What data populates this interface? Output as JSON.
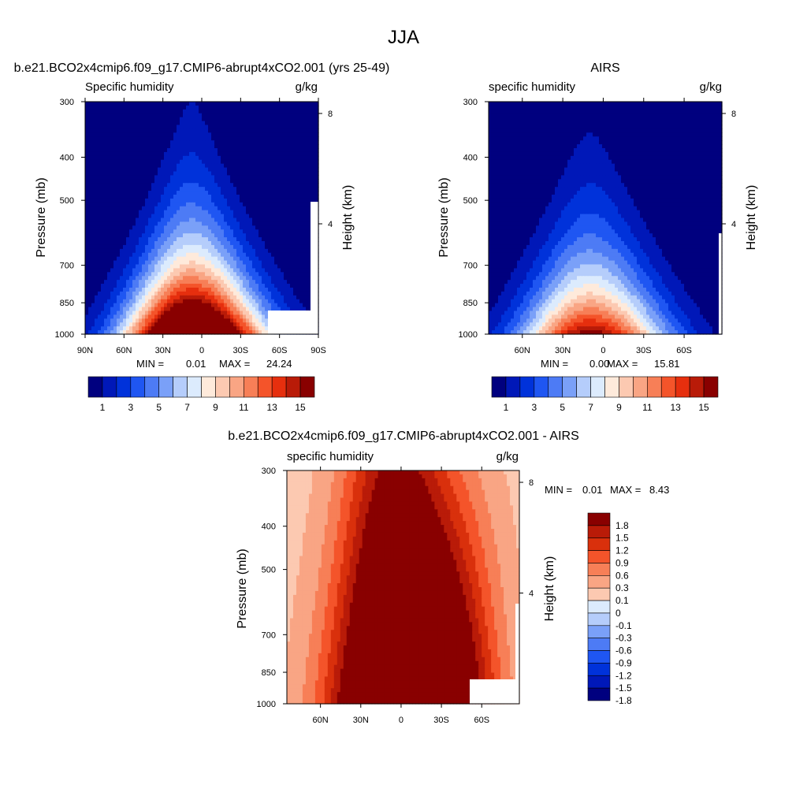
{
  "page_title": "JJA",
  "colors": {
    "abs_levels": [
      "#00007f",
      "#0018b8",
      "#0032da",
      "#1f56f2",
      "#4d7bf5",
      "#7aa0f8",
      "#b5cdfb",
      "#dcebfd",
      "#feeadb",
      "#fcc9b1",
      "#f9a584",
      "#f77f57",
      "#f4542a",
      "#e62f0e",
      "#b91b08",
      "#890000"
    ],
    "diff_levels": [
      "#890000",
      "#b91b08",
      "#d9300c",
      "#f4542a",
      "#f77f57",
      "#f9a584",
      "#fcc9b1",
      "#feeadb",
      "#ffffff",
      "#dcebfd",
      "#b5cdfb",
      "#7aa0f8",
      "#4d7bf5",
      "#1f56f2",
      "#0032da",
      "#0018b8",
      "#00007f"
    ]
  },
  "chart_data": [
    {
      "id": "model",
      "type": "heatmap",
      "title": "b.e21.BCO2x4cmip6.f09_g17.CMIP6-abrupt4xCO2.001 (yrs 25-49)",
      "left_label": "Specific humidity",
      "units": "g/kg",
      "ylabel": "Pressure (mb)",
      "y2label": "Height (km)",
      "y_ticks": [
        "300",
        "400",
        "500",
        "700",
        "850",
        "1000"
      ],
      "y2_ticks": [
        "8",
        "4"
      ],
      "x_ticks": [
        "90N",
        "60N",
        "30N",
        "0",
        "30S",
        "60S",
        "90S"
      ],
      "x_range": [
        90,
        -90
      ],
      "min_label": "MIN =",
      "min_value": "0.01",
      "max_label": "MAX =",
      "max_value": "24.24",
      "colorbar_labels": [
        "1",
        "3",
        "5",
        "7",
        "9",
        "11",
        "13",
        "15"
      ],
      "ridge": {
        "peak_lat": 8,
        "surface_max": 24.24,
        "top_min": 0.01
      }
    },
    {
      "id": "obs",
      "type": "heatmap",
      "title": "AIRS",
      "left_label": "specific humidity",
      "units": "g/kg",
      "ylabel": "Pressure (mb)",
      "y2label": "Height (km)",
      "y_ticks": [
        "300",
        "400",
        "500",
        "700",
        "850",
        "1000"
      ],
      "y2_ticks": [
        "8",
        "4"
      ],
      "x_ticks": [
        "60N",
        "30N",
        "0",
        "30S",
        "60S"
      ],
      "x_range": [
        85,
        -88
      ],
      "min_label": "MIN =",
      "min_value": "0.00",
      "max_label": "MAX =",
      "max_value": "15.81",
      "colorbar_labels": [
        "1",
        "3",
        "5",
        "7",
        "9",
        "11",
        "13",
        "15"
      ],
      "ridge": {
        "peak_lat": 10,
        "surface_max": 15.81,
        "top_min": 0.0
      }
    },
    {
      "id": "diff",
      "type": "heatmap",
      "title": "b.e21.BCO2x4cmip6.f09_g17.CMIP6-abrupt4xCO2.001 - AIRS",
      "left_label": "specific humidity",
      "units": "g/kg",
      "ylabel": "Pressure (mb)",
      "y2label": "Height (km)",
      "y_ticks": [
        "300",
        "400",
        "500",
        "700",
        "850",
        "1000"
      ],
      "y2_ticks": [
        "8",
        "4"
      ],
      "x_ticks": [
        "60N",
        "30N",
        "0",
        "30S",
        "60S"
      ],
      "x_range": [
        85,
        -88
      ],
      "min_label": "MIN =",
      "min_value": "0.01",
      "max_label": "MAX =",
      "max_value": "8.43",
      "colorbar_labels": [
        "1.8",
        "1.5",
        "1.2",
        "0.9",
        "0.6",
        "0.3",
        "0.1",
        "0",
        "-0.1",
        "-0.3",
        "-0.6",
        "-0.9",
        "-1.2",
        "-1.5",
        "-1.8"
      ]
    }
  ]
}
